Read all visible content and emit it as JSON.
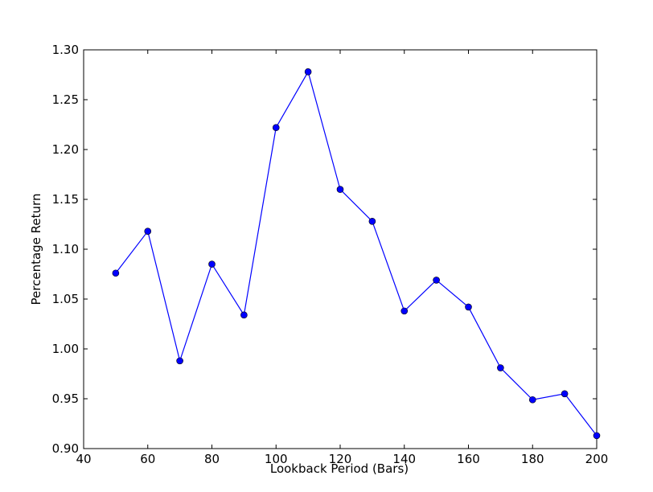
{
  "chart_data": {
    "type": "line",
    "xlabel": "Lookback Period (Bars)",
    "ylabel": "Percentage Return",
    "x": [
      50,
      60,
      70,
      80,
      90,
      100,
      110,
      120,
      130,
      140,
      150,
      160,
      170,
      180,
      190,
      200
    ],
    "series": [
      {
        "color": "#0000ff",
        "marker": "circle",
        "values": [
          1.076,
          1.118,
          0.988,
          1.085,
          1.034,
          1.222,
          1.278,
          1.16,
          1.128,
          1.038,
          1.069,
          1.042,
          0.981,
          0.949,
          0.955,
          0.913
        ]
      }
    ],
    "xlim": [
      40,
      200
    ],
    "ylim": [
      0.9,
      1.3
    ],
    "xticks": [
      40,
      60,
      80,
      100,
      120,
      140,
      160,
      180,
      200
    ],
    "yticks": [
      {
        "value": 0.9,
        "label": "0.90"
      },
      {
        "value": 0.95,
        "label": "0.95"
      },
      {
        "value": 1.0,
        "label": "1.00"
      },
      {
        "value": 1.05,
        "label": "1.05"
      },
      {
        "value": 1.1,
        "label": "1.10"
      },
      {
        "value": 1.15,
        "label": "1.15"
      },
      {
        "value": 1.2,
        "label": "1.20"
      },
      {
        "value": 1.25,
        "label": "1.25"
      },
      {
        "value": 1.3,
        "label": "1.30"
      }
    ],
    "grid": false
  }
}
